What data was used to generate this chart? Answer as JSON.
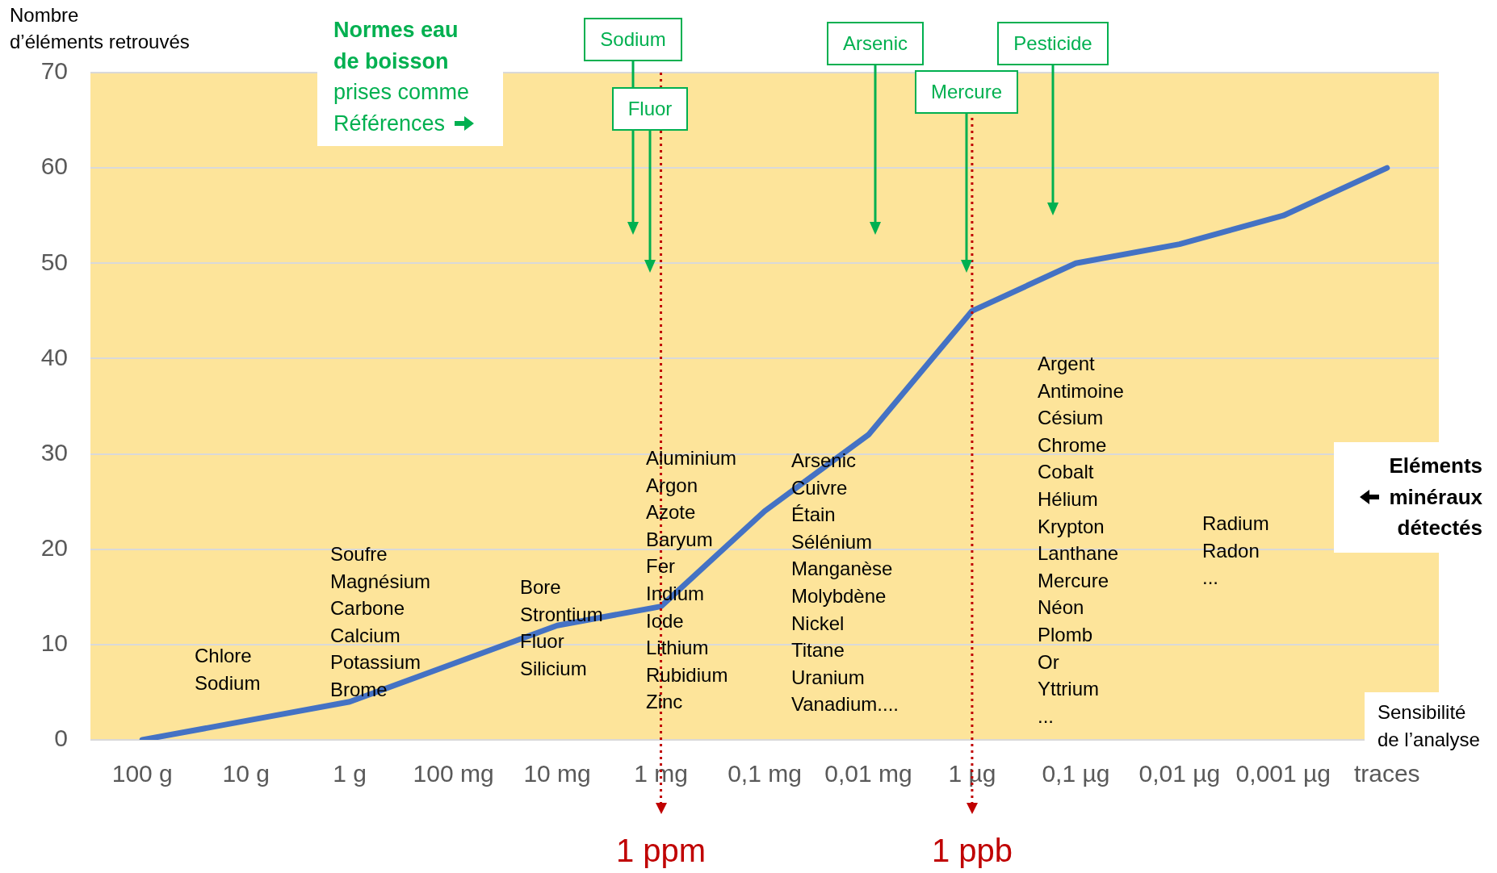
{
  "chart_data": {
    "type": "line",
    "xlabel": "Sensibilité\nde l’analyse",
    "ylabel": "Nombre\nd’éléments retrouvés",
    "categories": [
      "100 g",
      "10 g",
      "1 g",
      "100 mg",
      "10 mg",
      "1 mg",
      "0,1 mg",
      "0,01 mg",
      "1 µg",
      "0,1 µg",
      "0,01 µg",
      "0,001 µg",
      "traces"
    ],
    "values": [
      0,
      2,
      4,
      8,
      12,
      14,
      24,
      32,
      45,
      50,
      52,
      55,
      60
    ],
    "color": "#4472c4",
    "marker": "none",
    "grid": "y",
    "ylim": [
      0,
      70
    ],
    "yticks": [
      0,
      10,
      20,
      30,
      40,
      50,
      60,
      70
    ],
    "ref_lines": [
      {
        "axis": "x",
        "value": "1 mg",
        "label": "1 ppm",
        "color": "#c00000",
        "line_style": "dotted"
      },
      {
        "axis": "x",
        "value": "1 µg",
        "label": "1 ppb",
        "color": "#c00000",
        "line_style": "dotted"
      }
    ],
    "annotations": [
      "Normes eau\nde boisson\nprises comme\nRéférences",
      "Eléments\nminéraux\ndétectés",
      "Sodium",
      "Fluor",
      "Arsenic",
      "Mercure",
      "Pesticide",
      "Chlore\nSodium",
      "Soufre\nMagnésium\nCarbone\nCalcium\nPotassium\nBrome",
      "Bore\nStrontium\nFluor\nSilicium",
      "Aluminium\nArgon\nAzote\nBaryum\nFer\nIndium\nIode\nLithium\nRubidium\nZinc",
      "Arsenic\nCuivre\nÉtain\nSélénium\nManganèse\nMolybdène\nNickel\nTitane\nUranium\nVanadium....",
      "Argent\nAntimoine\nCésium\nChrome\nCobalt\nHélium\nKrypton\nLanthane\nMercure\nNéon\nPlomb\nOr\nYttrium\n...",
      "Radium\nRadon\n..."
    ]
  }
}
